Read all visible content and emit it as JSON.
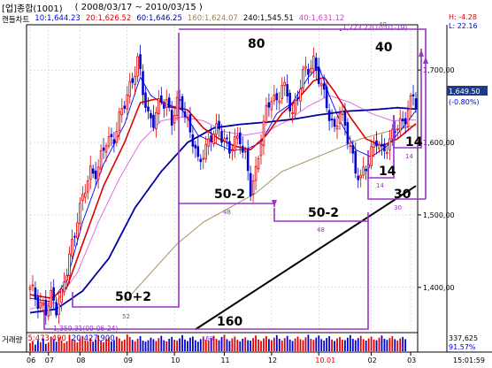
{
  "header": {
    "instrument": "[업]종합(1001)",
    "period": "( 2008/03/17 ~ 2010/03/15 )"
  },
  "legend": {
    "chart_type": "캔들차트",
    "ma10": "10:1,644.23",
    "ma20": "20:1,626.52",
    "ma60": "60:1,646.25",
    "ma160": "160:1,624.07",
    "ma240": "240:1,545.51",
    "ma40": "40:1,631.12"
  },
  "volume_legend": {
    "label": "거래량",
    "v5": "5:473,490",
    "v20": "20:427,900"
  },
  "info_box": {
    "high": "H: -4.28",
    "low": "L: 22.16"
  },
  "current": {
    "price": "1,649.50",
    "change": "(-0.80%)"
  },
  "annotations": {
    "high_point": "1,723.22(10-01-19)",
    "low_point": "1,359.31(09-06-24)",
    "cycle_80": "80",
    "cycle_40": "40",
    "cycle_50_2_a": "50-2",
    "cycle_50_2_b": "50-2",
    "cycle_50_plus_2": "50+2",
    "cycle_160": "160",
    "cycle_14_a": "14",
    "cycle_14_b": "14",
    "cycle_30": "30",
    "small_40": "40",
    "small_48_a": "48",
    "small_48_b": "48",
    "small_52": "52",
    "small_160": "160",
    "small_14_a": "14",
    "small_14_b": "14",
    "small_30": "30"
  },
  "volume_axis": {
    "value": "337,625",
    "pct": "91.57%"
  },
  "x_axis": {
    "ticks": [
      "06",
      "07",
      "08",
      "09",
      "10",
      "11",
      "12",
      "10.01",
      "02",
      "03"
    ],
    "time": "15:01:59"
  },
  "chart_data": {
    "type": "line",
    "title": "",
    "ylim": [
      1340,
      1760
    ],
    "y_ticks": [
      1400,
      1500,
      1600,
      1700
    ],
    "y_tick_labels": [
      "1,400,00",
      "1,500,00",
      "1,600,00",
      "1,700,00"
    ],
    "colors": {
      "up": "#e00000",
      "down": "#0000d0",
      "ma10": "#0000ff",
      "ma20": "#e00000",
      "ma60": "#0000a0",
      "ma160": "#a89060",
      "ma40": "#e070e0",
      "trend": "#000000",
      "cycle": "#9933cc"
    },
    "x_ticks": [
      {
        "label": "06",
        "i": 0
      },
      {
        "label": "07",
        "i": 7
      },
      {
        "label": "08",
        "i": 19
      },
      {
        "label": "09",
        "i": 37
      },
      {
        "label": "10",
        "i": 55
      },
      {
        "label": "11",
        "i": 74
      },
      {
        "label": "12",
        "i": 92
      },
      {
        "label": "10.01",
        "i": 110
      },
      {
        "label": "02",
        "i": 130
      },
      {
        "label": "03",
        "i": 145
      }
    ],
    "close_anchors": [
      [
        0,
        1395
      ],
      [
        4,
        1380
      ],
      [
        6,
        1365
      ],
      [
        8,
        1385
      ],
      [
        10,
        1375
      ],
      [
        12,
        1390
      ],
      [
        14,
        1420
      ],
      [
        16,
        1460
      ],
      [
        18,
        1500
      ],
      [
        20,
        1520
      ],
      [
        23,
        1560
      ],
      [
        26,
        1565
      ],
      [
        29,
        1600
      ],
      [
        32,
        1610
      ],
      [
        35,
        1640
      ],
      [
        38,
        1680
      ],
      [
        41,
        1710
      ],
      [
        43,
        1670
      ],
      [
        45,
        1640
      ],
      [
        47,
        1630
      ],
      [
        50,
        1655
      ],
      [
        52,
        1660
      ],
      [
        54,
        1630
      ],
      [
        56,
        1650
      ],
      [
        58,
        1655
      ],
      [
        60,
        1630
      ],
      [
        62,
        1600
      ],
      [
        64,
        1570
      ],
      [
        66,
        1590
      ],
      [
        68,
        1600
      ],
      [
        70,
        1610
      ],
      [
        72,
        1620
      ],
      [
        74,
        1608
      ],
      [
        76,
        1585
      ],
      [
        78,
        1600
      ],
      [
        80,
        1610
      ],
      [
        82,
        1580
      ],
      [
        84,
        1530
      ],
      [
        86,
        1560
      ],
      [
        88,
        1610
      ],
      [
        90,
        1640
      ],
      [
        92,
        1660
      ],
      [
        94,
        1660
      ],
      [
        96,
        1680
      ],
      [
        98,
        1660
      ],
      [
        100,
        1640
      ],
      [
        102,
        1670
      ],
      [
        104,
        1690
      ],
      [
        106,
        1700
      ],
      [
        108,
        1715
      ],
      [
        110,
        1690
      ],
      [
        112,
        1660
      ],
      [
        114,
        1640
      ],
      [
        116,
        1620
      ],
      [
        118,
        1640
      ],
      [
        120,
        1620
      ],
      [
        122,
        1600
      ],
      [
        124,
        1560
      ],
      [
        126,
        1545
      ],
      [
        128,
        1570
      ],
      [
        130,
        1590
      ],
      [
        132,
        1600
      ],
      [
        134,
        1585
      ],
      [
        136,
        1600
      ],
      [
        138,
        1610
      ],
      [
        140,
        1620
      ],
      [
        142,
        1628
      ],
      [
        144,
        1650
      ],
      [
        146,
        1660
      ],
      [
        147,
        1650
      ]
    ],
    "ma10": [
      [
        0,
        1385
      ],
      [
        8,
        1380
      ],
      [
        14,
        1410
      ],
      [
        20,
        1490
      ],
      [
        28,
        1570
      ],
      [
        36,
        1625
      ],
      [
        42,
        1690
      ],
      [
        46,
        1665
      ],
      [
        52,
        1650
      ],
      [
        58,
        1645
      ],
      [
        64,
        1610
      ],
      [
        70,
        1600
      ],
      [
        76,
        1590
      ],
      [
        82,
        1590
      ],
      [
        88,
        1600
      ],
      [
        94,
        1640
      ],
      [
        100,
        1655
      ],
      [
        106,
        1690
      ],
      [
        110,
        1705
      ],
      [
        114,
        1665
      ],
      [
        118,
        1630
      ],
      [
        124,
        1590
      ],
      [
        130,
        1580
      ],
      [
        136,
        1595
      ],
      [
        142,
        1620
      ],
      [
        147,
        1644
      ]
    ],
    "ma20": [
      [
        0,
        1390
      ],
      [
        8,
        1385
      ],
      [
        14,
        1400
      ],
      [
        20,
        1460
      ],
      [
        28,
        1540
      ],
      [
        36,
        1600
      ],
      [
        42,
        1655
      ],
      [
        48,
        1660
      ],
      [
        54,
        1650
      ],
      [
        60,
        1645
      ],
      [
        66,
        1620
      ],
      [
        72,
        1605
      ],
      [
        78,
        1595
      ],
      [
        84,
        1590
      ],
      [
        90,
        1610
      ],
      [
        96,
        1640
      ],
      [
        102,
        1660
      ],
      [
        108,
        1685
      ],
      [
        112,
        1690
      ],
      [
        116,
        1670
      ],
      [
        122,
        1635
      ],
      [
        128,
        1605
      ],
      [
        134,
        1595
      ],
      [
        140,
        1605
      ],
      [
        147,
        1626
      ]
    ],
    "ma40": [
      [
        0,
        1370
      ],
      [
        10,
        1380
      ],
      [
        18,
        1420
      ],
      [
        26,
        1490
      ],
      [
        34,
        1550
      ],
      [
        42,
        1600
      ],
      [
        50,
        1630
      ],
      [
        58,
        1635
      ],
      [
        66,
        1630
      ],
      [
        74,
        1615
      ],
      [
        82,
        1610
      ],
      [
        90,
        1615
      ],
      [
        98,
        1630
      ],
      [
        106,
        1650
      ],
      [
        114,
        1665
      ],
      [
        122,
        1655
      ],
      [
        130,
        1640
      ],
      [
        138,
        1630
      ],
      [
        147,
        1631
      ]
    ],
    "ma60": [
      [
        0,
        1365
      ],
      [
        10,
        1370
      ],
      [
        20,
        1395
      ],
      [
        30,
        1440
      ],
      [
        40,
        1510
      ],
      [
        50,
        1560
      ],
      [
        60,
        1600
      ],
      [
        70,
        1620
      ],
      [
        80,
        1625
      ],
      [
        90,
        1628
      ],
      [
        100,
        1632
      ],
      [
        110,
        1638
      ],
      [
        120,
        1643
      ],
      [
        130,
        1645
      ],
      [
        140,
        1648
      ],
      [
        147,
        1646
      ]
    ],
    "ma160": [
      [
        36,
        1380
      ],
      [
        46,
        1420
      ],
      [
        56,
        1460
      ],
      [
        66,
        1490
      ],
      [
        76,
        1510
      ],
      [
        86,
        1530
      ],
      [
        96,
        1560
      ],
      [
        106,
        1575
      ],
      [
        116,
        1590
      ],
      [
        126,
        1605
      ],
      [
        136,
        1615
      ],
      [
        147,
        1624
      ]
    ],
    "trendline": [
      [
        63,
        1342
      ],
      [
        147,
        1540
      ]
    ],
    "volume": [
      22,
      28,
      18,
      30,
      25,
      35,
      20,
      24,
      40,
      32,
      26,
      38,
      30,
      22,
      27,
      45,
      33,
      29,
      24,
      35,
      42,
      30,
      28,
      36,
      26,
      31,
      44,
      29,
      25,
      33,
      38,
      27,
      30,
      40,
      35,
      28,
      32,
      46,
      39,
      31,
      27,
      34,
      41,
      29,
      26,
      30,
      37,
      33,
      28,
      36,
      42,
      30,
      27,
      34,
      39,
      31,
      29,
      35,
      44,
      32,
      28,
      37,
      40,
      30,
      26,
      33,
      38,
      31,
      29,
      36,
      42,
      34,
      30,
      39,
      45,
      33,
      28,
      35,
      40,
      31,
      27,
      34,
      38,
      30,
      29,
      36,
      43,
      32,
      28,
      35,
      41,
      33,
      30,
      37,
      44,
      34,
      29,
      36,
      42,
      32,
      28,
      35,
      40,
      33,
      30,
      38,
      45,
      34,
      31,
      37,
      43,
      33,
      29,
      36,
      41,
      32,
      28,
      35,
      39,
      31,
      30,
      37,
      44,
      34,
      30,
      36,
      42,
      33,
      29,
      35,
      40,
      32,
      30,
      37,
      43,
      34,
      31,
      36,
      41,
      33,
      29,
      35,
      39,
      33
    ]
  }
}
